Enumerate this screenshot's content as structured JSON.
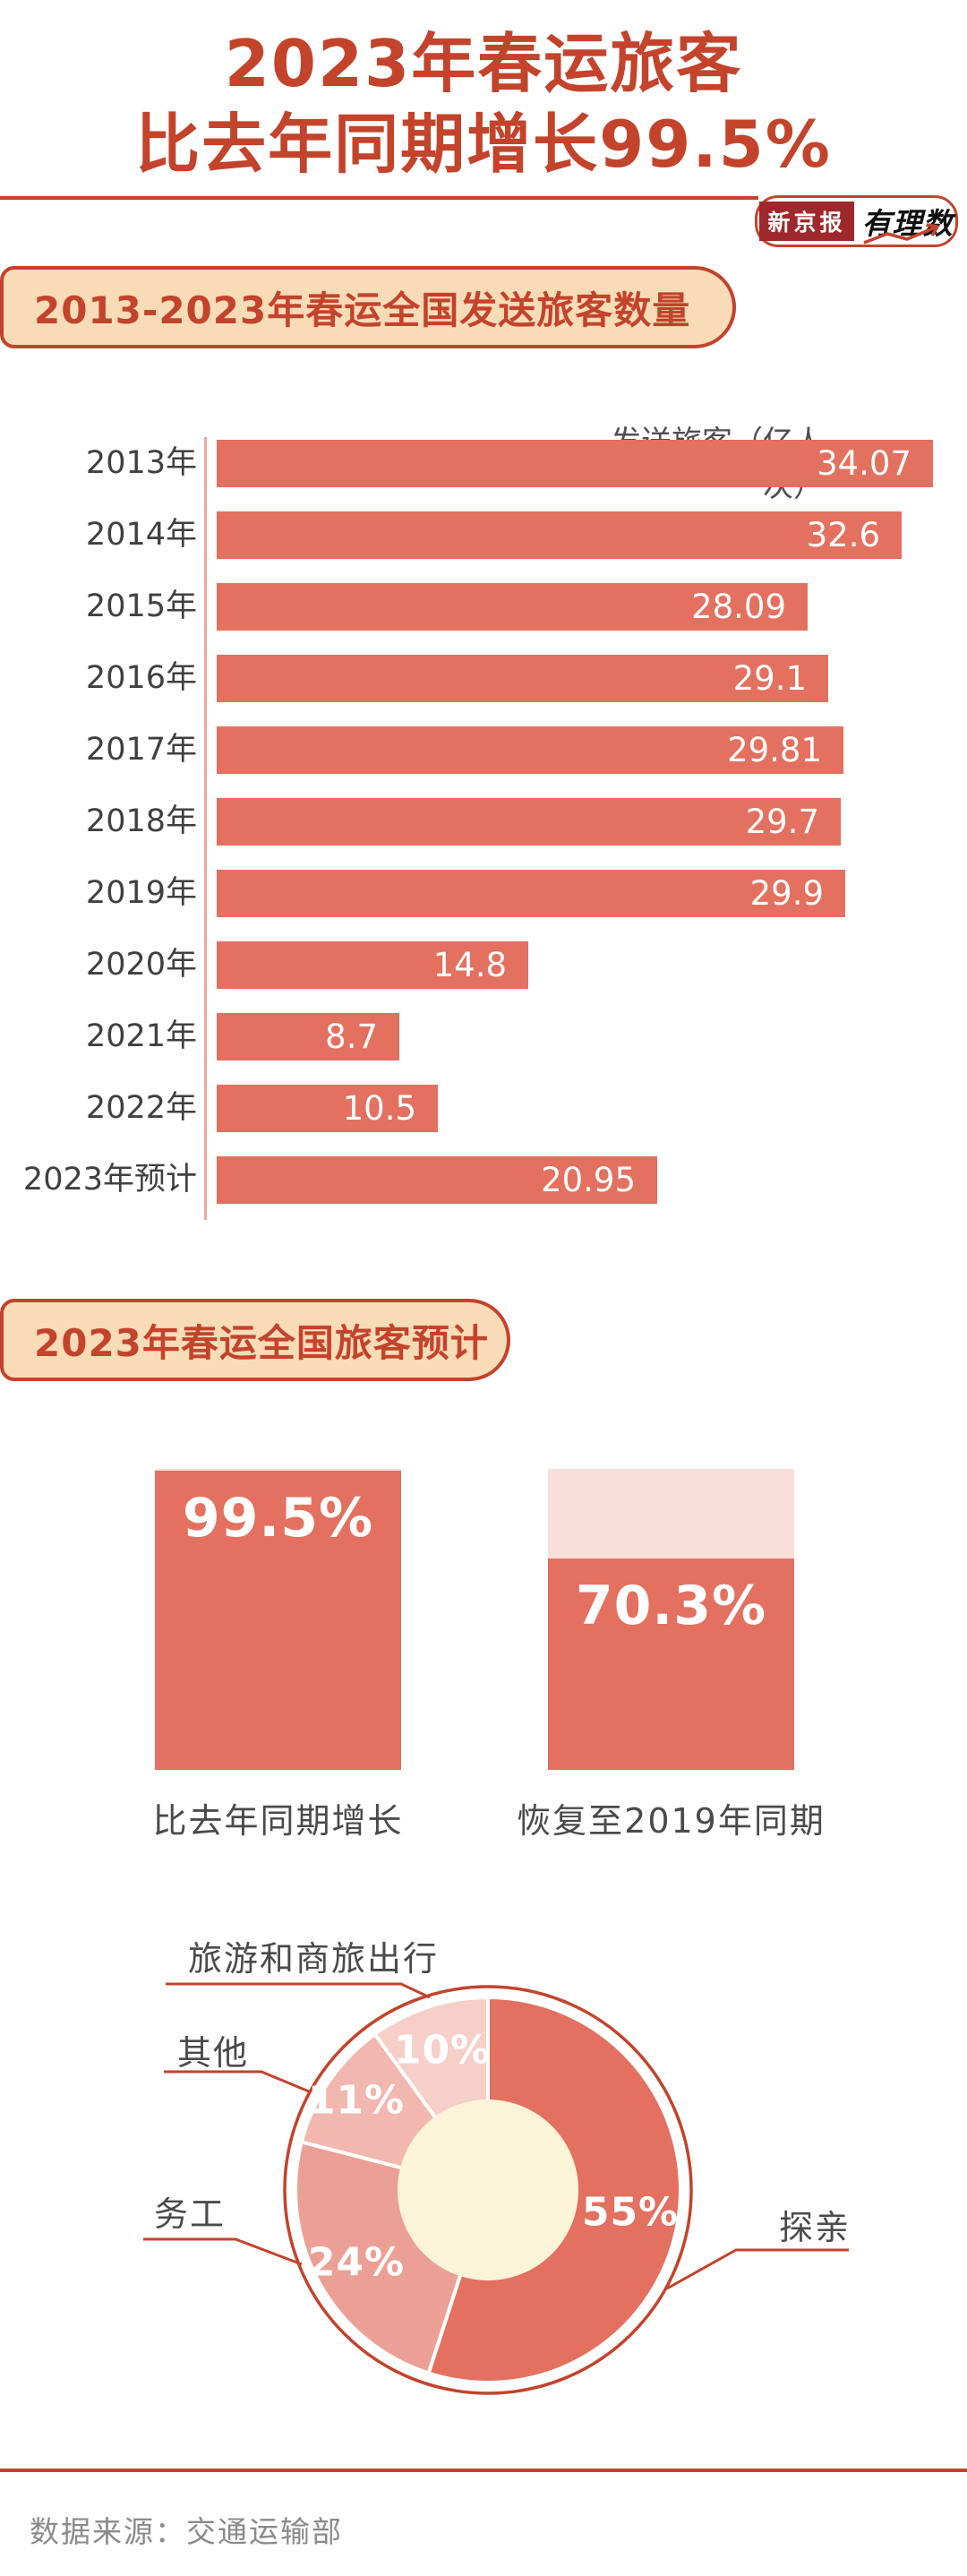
{
  "title": {
    "line1": "2023年春运旅客",
    "line2": "比去年同期增长99.5%"
  },
  "logo": {
    "brand": "新京报",
    "sub": "有理数"
  },
  "sections": [
    {
      "header": "2013-2023年春运全国发送旅客数量"
    },
    {
      "header": "2023年春运全国旅客预计"
    }
  ],
  "footer": {
    "source": "数据来源：交通运输部"
  },
  "colors": {
    "accent": "#C3432B",
    "salmon": "#E4705F",
    "salmon_light": "#ECA095",
    "pink_mid": "#F2B7AE",
    "pink_light": "#F6CFC9",
    "pink_pale": "#F9DFDA",
    "cream": "#FBF4D8",
    "peach": "#F8DCB8",
    "brand_red": "#9F282C",
    "ink": "#404040",
    "gray": "#8A8A8A",
    "axis_line": "#ECAA9D"
  },
  "chart_data": [
    {
      "type": "bar",
      "orientation": "horizontal",
      "title": "2013-2023年春运全国发送旅客数量",
      "value_label": "发送旅客（亿人次）",
      "categories": [
        "2013年",
        "2014年",
        "2015年",
        "2016年",
        "2017年",
        "2018年",
        "2019年",
        "2020年",
        "2021年",
        "2022年",
        "2023年预计"
      ],
      "values": [
        34.07,
        32.6,
        28.09,
        29.1,
        29.81,
        29.7,
        29.9,
        14.8,
        8.7,
        10.5,
        20.95
      ],
      "xlim": [
        0,
        34.07
      ],
      "grid": false,
      "value_labels_inside_bars": true
    },
    {
      "type": "percent-square",
      "title": "2023年春运全国旅客预计",
      "items": [
        {
          "label": "比去年同期增长",
          "value": 99.5,
          "display": "99.5%"
        },
        {
          "label": "恢复至2019年同期",
          "value": 70.3,
          "display": "70.3%"
        }
      ]
    },
    {
      "type": "pie",
      "donut": true,
      "start_angle_deg": 0,
      "clockwise": true,
      "unit": "%",
      "slices": [
        {
          "label": "探亲",
          "value": 55,
          "display": "55%"
        },
        {
          "label": "务工",
          "value": 24,
          "display": "24%"
        },
        {
          "label": "其他",
          "value": 11,
          "display": "11%"
        },
        {
          "label": "旅游和商旅出行",
          "value": 10,
          "display": "10%"
        }
      ]
    }
  ]
}
